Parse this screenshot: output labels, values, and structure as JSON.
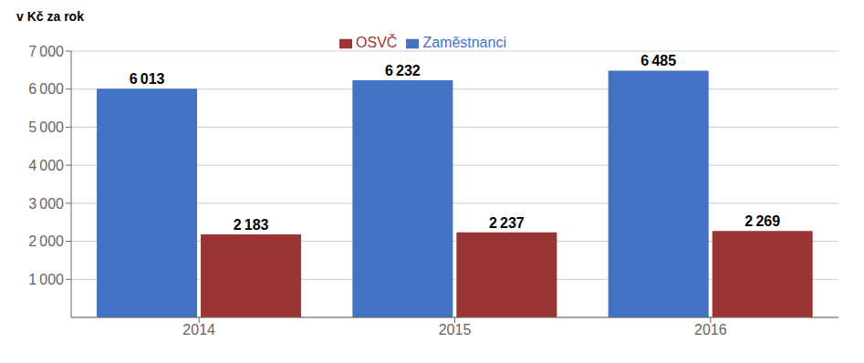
{
  "chart_data": {
    "type": "bar",
    "ylabel": "v Kč za rok",
    "categories": [
      "2014",
      "2015",
      "2016"
    ],
    "series": [
      {
        "name": "Zaměstnanci",
        "color": "#4472C4",
        "values": [
          6013,
          6232,
          6485
        ],
        "value_labels": [
          "6 013",
          "6 232",
          "6 485"
        ]
      },
      {
        "name": "OSVČ",
        "color": "#9B3535",
        "values": [
          2183,
          2237,
          2269
        ],
        "value_labels": [
          "2 183",
          "2 237",
          "2 269"
        ]
      }
    ],
    "ylim": [
      0,
      7000
    ],
    "yticks": [
      {
        "value": 1000,
        "label": "1 000"
      },
      {
        "value": 2000,
        "label": "2 000"
      },
      {
        "value": 3000,
        "label": "3 000"
      },
      {
        "value": 4000,
        "label": "4 000"
      },
      {
        "value": 5000,
        "label": "5 000"
      },
      {
        "value": 6000,
        "label": "6 000"
      },
      {
        "value": 7000,
        "label": "7 000"
      }
    ],
    "grid": true,
    "legend": "top",
    "data_labels": true
  }
}
